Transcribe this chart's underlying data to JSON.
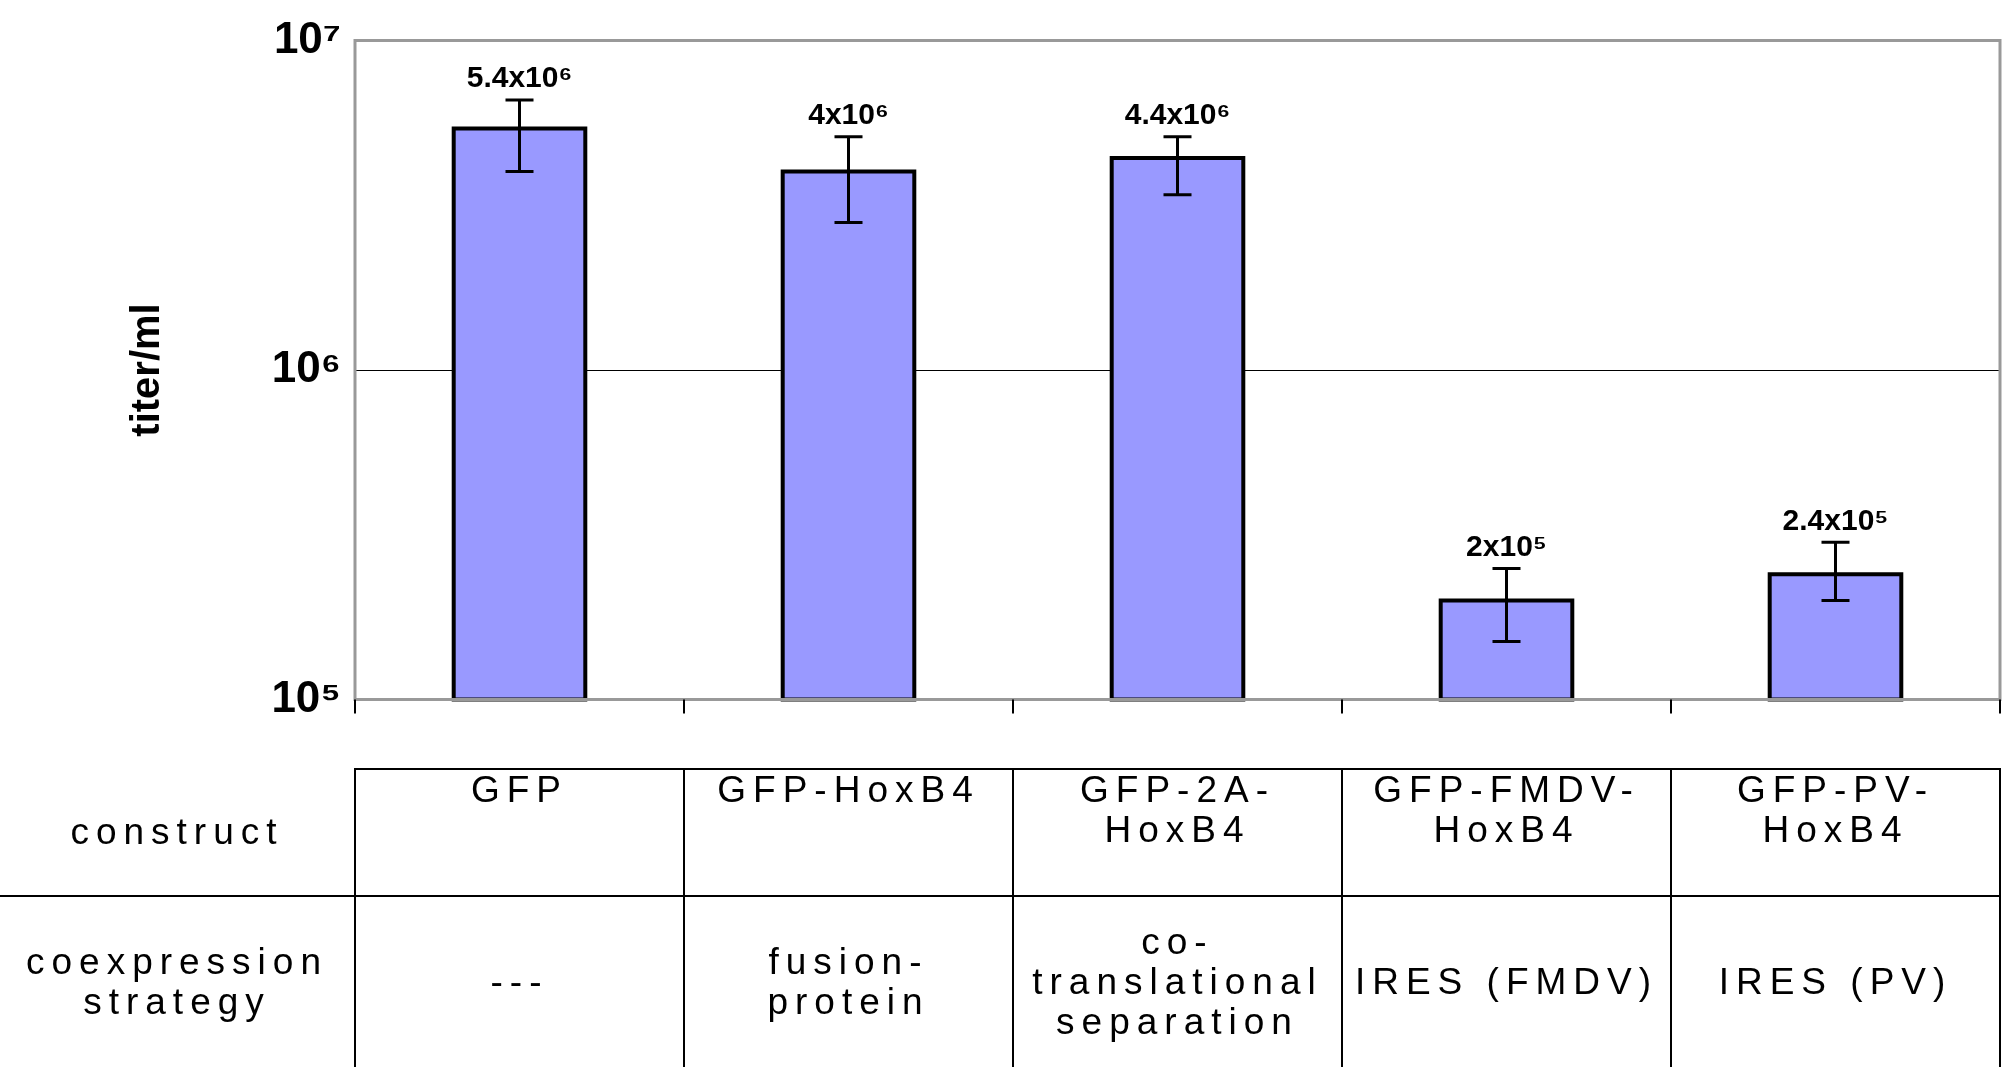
{
  "chart_data": {
    "type": "bar",
    "xlabel": "construct",
    "ylabel": "titer/ml",
    "categories": [
      "GFP",
      "GFP-HoxB4",
      "GFP-2A-HoxB4",
      "GFP-FMDV-HoxB4",
      "GFP-PV-HoxB4"
    ],
    "values": [
      5400000,
      4000000,
      4400000,
      200000,
      240000
    ],
    "value_labels": [
      "5.4x10⁶",
      "4x10⁶",
      "4.4x10⁶",
      "2x10⁵",
      "2.4x10⁵"
    ],
    "errors": [
      [
        4000000,
        6600000
      ],
      [
        2800000,
        5100000
      ],
      [
        3400000,
        5100000
      ],
      [
        150000,
        250000
      ],
      [
        200000,
        300000
      ]
    ],
    "color": "#9999ff",
    "log": true,
    "ylim": [
      100000,
      10000000
    ],
    "yticks": [
      {
        "value": 100000,
        "label": "10⁵"
      },
      {
        "value": 1000000,
        "label": "10⁶"
      },
      {
        "value": 10000000,
        "label": "10⁷"
      }
    ],
    "grid": "y",
    "legend": false,
    "annotations": [
      "coexpression strategy",
      "---",
      "fusion-protein",
      "co-translational separation",
      "IRES (FMDV)",
      "IRES (PV)"
    ]
  }
}
